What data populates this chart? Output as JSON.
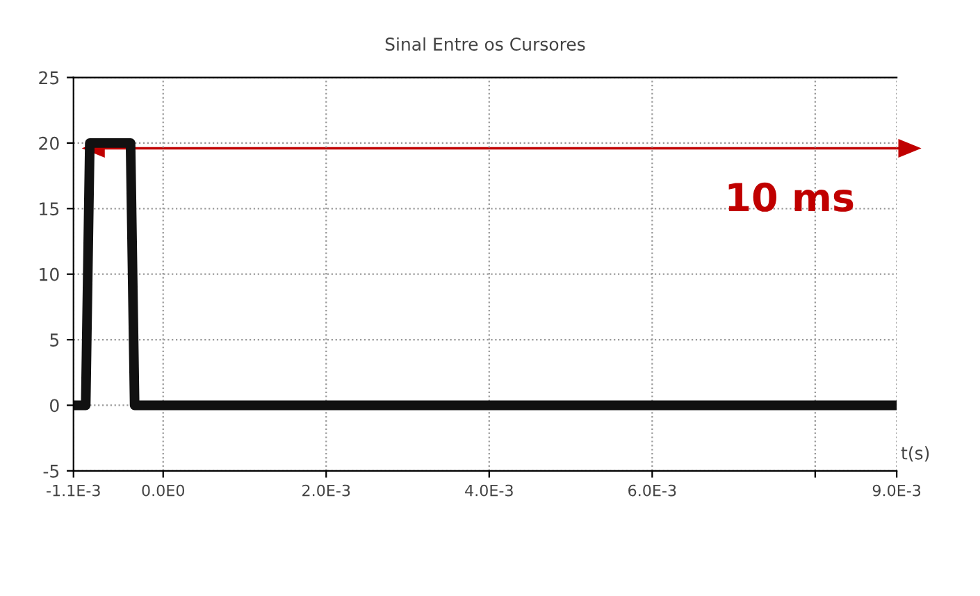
{
  "chart_data": {
    "type": "line",
    "title": "Sinal Entre os Cursores",
    "xlabel": "t(s)",
    "x": [
      -0.0011,
      -0.00095,
      -0.0009,
      -0.0004,
      -0.00035,
      0.009
    ],
    "series": [
      {
        "color": "#111111",
        "values": [
          0,
          0,
          20,
          20,
          0,
          0
        ]
      }
    ],
    "xlim": [
      -0.0011,
      0.009
    ],
    "xticks": [
      {
        "value": -0.0011,
        "label": "-1.1E-3"
      },
      {
        "value": 0,
        "label": "0.0E0"
      },
      {
        "value": 0.002,
        "label": "2.0E-3"
      },
      {
        "value": 0.004,
        "label": "4.0E-3"
      },
      {
        "value": 0.006,
        "label": "6.0E-3"
      },
      {
        "value": 0.008,
        "label": null
      },
      {
        "value": 0.009,
        "label": "9.0E-3"
      }
    ],
    "ylim": [
      -5,
      25
    ],
    "yticks": [
      -5,
      0,
      5,
      10,
      15,
      20,
      25
    ],
    "grid": true,
    "line_style": "solid",
    "marker": "none",
    "annotations": [
      "10 ms"
    ]
  }
}
